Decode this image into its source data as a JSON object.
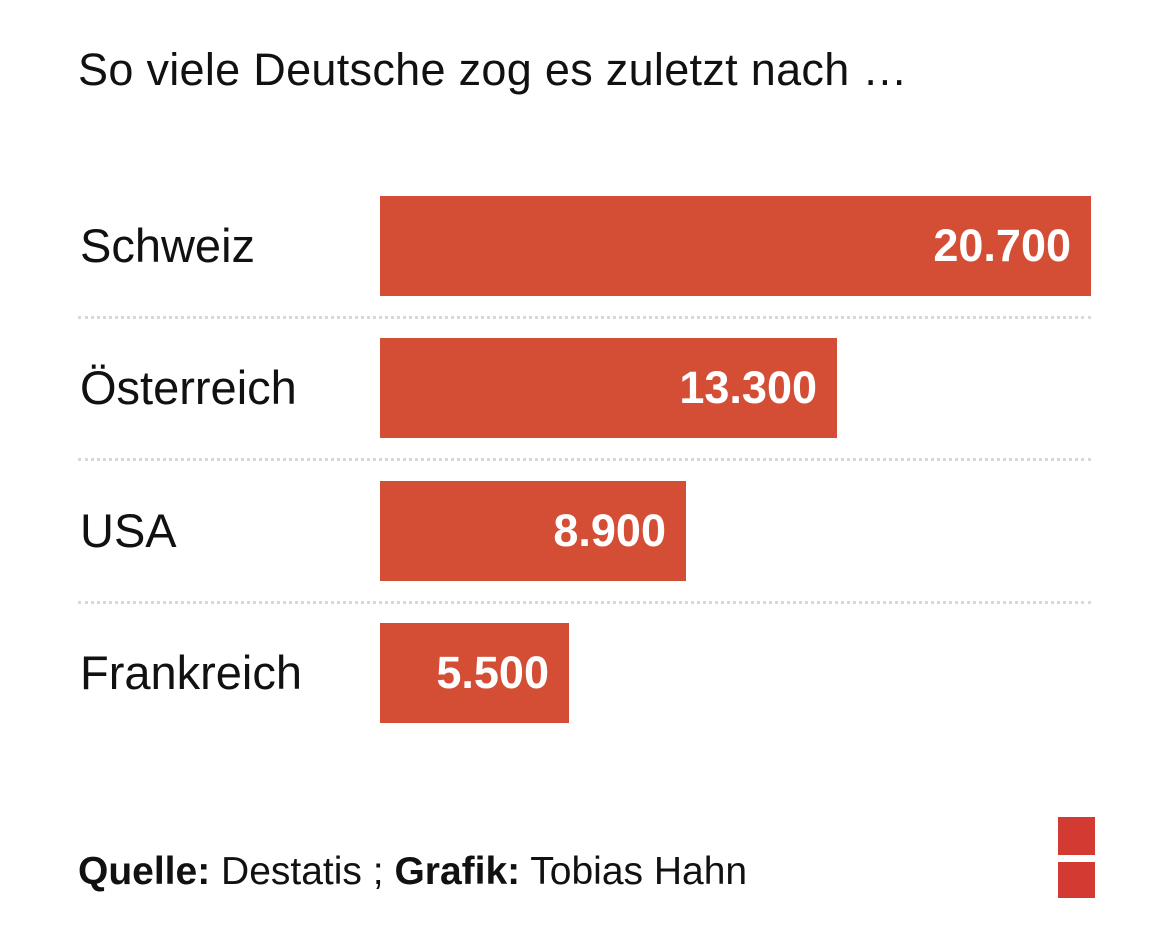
{
  "chart_data": {
    "type": "bar",
    "orientation": "horizontal",
    "title": "So viele Deutsche zog es zuletzt nach …",
    "categories": [
      "Schweiz",
      "Österreich",
      "USA",
      "Frankreich"
    ],
    "values": [
      20700,
      13300,
      8900,
      5500
    ],
    "value_labels": [
      "20.700",
      "13.300",
      "8.900",
      "5.500"
    ],
    "xlim": [
      0,
      20700
    ],
    "xlabel": "",
    "ylabel": "",
    "grid": false,
    "bar_color": "#d44e36"
  },
  "footer": {
    "source_label": "Quelle:",
    "source_value": "Destatis ;",
    "graphic_label": "Grafik:",
    "graphic_value": "Tobias Hahn"
  },
  "logo_color": "#d23a32"
}
